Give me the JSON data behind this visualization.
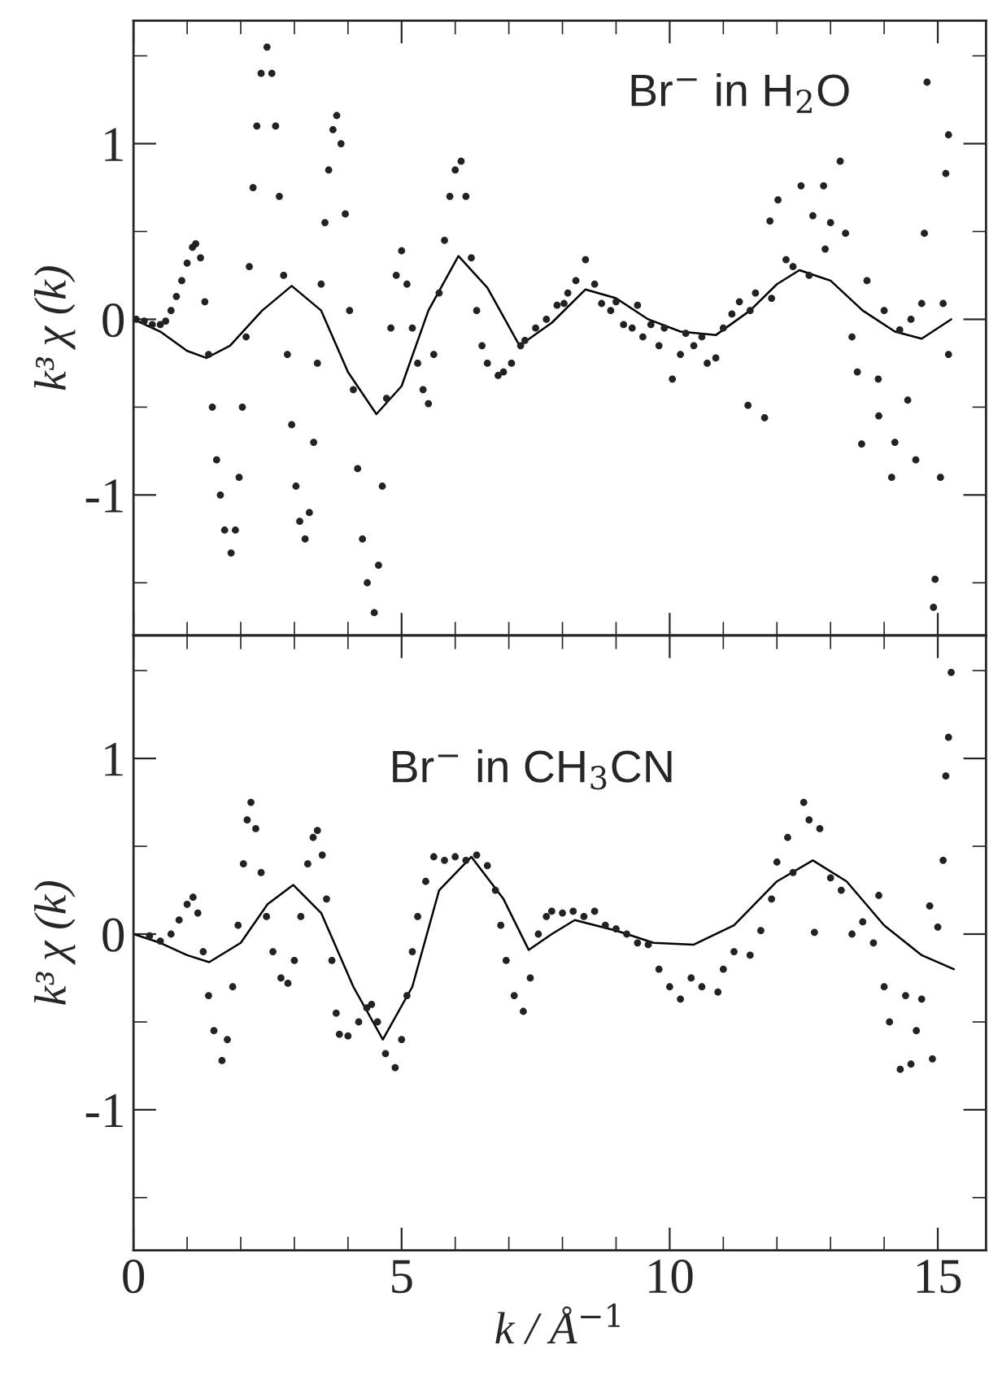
{
  "chart_data": [
    {
      "type": "scatter",
      "xlim": [
        0,
        15.9
      ],
      "ylim": [
        -1.8,
        1.7
      ],
      "tick_labels": "y",
      "ylabel": "k³ χ (k)",
      "grid": false,
      "legend": false,
      "xticks": [
        0,
        {
          "value": 1,
          "label": null
        },
        {
          "value": 2,
          "label": null
        },
        {
          "value": 3,
          "label": null
        },
        {
          "value": 4,
          "label": null
        },
        5,
        {
          "value": 6,
          "label": null
        },
        {
          "value": 7,
          "label": null
        },
        {
          "value": 8,
          "label": null
        },
        {
          "value": 9,
          "label": null
        },
        10,
        {
          "value": 11,
          "label": null
        },
        {
          "value": 12,
          "label": null
        },
        {
          "value": 13,
          "label": null
        },
        {
          "value": 14,
          "label": null
        },
        15
      ],
      "yticks": [
        {
          "value": -1.5,
          "label": null
        },
        -1,
        {
          "value": -0.5,
          "label": null
        },
        0,
        {
          "value": 0.5,
          "label": null
        },
        1,
        {
          "value": 1.5,
          "label": null
        }
      ],
      "annotations": [
        "Br$^{−}$ in H$_{2}$O"
      ],
      "series": [
        {
          "marker": "circle",
          "color": "#222222",
          "x": [
            0.05,
            0.2,
            0.35,
            0.5,
            0.6,
            0.7,
            0.8,
            0.9,
            1.0,
            1.1,
            1.16,
            1.25,
            1.33,
            1.4,
            1.47,
            1.55,
            1.62,
            1.7,
            1.82,
            1.9,
            1.97,
            2.03,
            2.1,
            2.16,
            2.23,
            2.3,
            2.38,
            2.49,
            2.58,
            2.65,
            2.72,
            2.8,
            2.87,
            2.95,
            3.03,
            3.1,
            3.2,
            3.28,
            3.36,
            3.43,
            3.5,
            3.57,
            3.64,
            3.72,
            3.79,
            3.87,
            3.95,
            4.03,
            4.1,
            4.18,
            4.27,
            4.36,
            4.49,
            4.57,
            4.64,
            4.72,
            4.8,
            4.9,
            5.0,
            5.1,
            5.2,
            5.3,
            5.4,
            5.5,
            5.6,
            5.7,
            5.8,
            5.9,
            6.0,
            6.11,
            6.2,
            6.3,
            6.4,
            6.5,
            6.6,
            6.8,
            6.9,
            7.05,
            7.22,
            7.3,
            7.5,
            7.7,
            7.9,
            8.03,
            8.1,
            8.25,
            8.43,
            8.6,
            8.73,
            8.9,
            9.0,
            9.14,
            9.3,
            9.4,
            9.5,
            9.65,
            9.8,
            9.9,
            10.05,
            10.2,
            10.3,
            10.45,
            10.6,
            10.7,
            10.86,
            11.0,
            11.16,
            11.3,
            11.46,
            11.5,
            11.6,
            11.77,
            11.87,
            11.9,
            12.02,
            12.17,
            12.3,
            12.45,
            12.6,
            12.67,
            12.87,
            12.9,
            13.0,
            13.18,
            13.28,
            13.4,
            13.5,
            13.58,
            13.68,
            13.89,
            13.9,
            14.0,
            14.14,
            14.2,
            14.29,
            14.44,
            14.5,
            14.59,
            14.7,
            14.75,
            14.8,
            14.92,
            14.95,
            15.05,
            15.1,
            15.15,
            15.2,
            15.2
          ],
          "values": [
            0.0,
            -0.01,
            -0.03,
            -0.03,
            -0.01,
            0.05,
            0.13,
            0.22,
            0.32,
            0.41,
            0.43,
            0.35,
            0.1,
            -0.2,
            -0.5,
            -0.8,
            -1.0,
            -1.2,
            -1.33,
            -1.2,
            -0.9,
            -0.5,
            -0.1,
            0.3,
            0.75,
            1.1,
            1.4,
            1.55,
            1.4,
            1.1,
            0.7,
            0.25,
            -0.2,
            -0.6,
            -0.95,
            -1.15,
            -1.25,
            -1.1,
            -0.7,
            -0.25,
            0.2,
            0.55,
            0.85,
            1.08,
            1.16,
            1.0,
            0.6,
            0.05,
            -0.4,
            -0.85,
            -1.25,
            -1.5,
            -1.67,
            -1.4,
            -0.95,
            -0.45,
            -0.05,
            0.25,
            0.39,
            0.2,
            -0.05,
            -0.25,
            -0.4,
            -0.48,
            -0.2,
            0.15,
            0.45,
            0.7,
            0.85,
            0.9,
            0.7,
            0.35,
            0.05,
            -0.15,
            -0.25,
            -0.32,
            -0.3,
            -0.25,
            -0.15,
            -0.12,
            -0.05,
            0.0,
            0.08,
            0.09,
            0.15,
            0.22,
            0.34,
            0.2,
            0.09,
            0.05,
            0.1,
            -0.03,
            -0.05,
            0.08,
            -0.1,
            -0.03,
            -0.15,
            -0.05,
            -0.34,
            -0.2,
            -0.08,
            -0.15,
            -0.1,
            -0.25,
            -0.22,
            -0.05,
            0.03,
            0.1,
            -0.49,
            0.05,
            0.15,
            -0.56,
            0.56,
            0.12,
            0.68,
            0.34,
            0.3,
            0.76,
            0.25,
            0.59,
            0.76,
            0.4,
            0.55,
            0.9,
            0.49,
            -0.1,
            -0.3,
            -0.71,
            0.22,
            -0.34,
            -0.55,
            0.05,
            -0.9,
            -0.7,
            -0.06,
            -0.46,
            0.0,
            -0.8,
            0.09,
            0.49,
            1.35,
            -1.64,
            -1.48,
            -0.9,
            0.09,
            0.83,
            1.05,
            -0.2
          ]
        },
        {
          "type": "line",
          "marker": "none",
          "color": "#000000",
          "x": [
            0,
            0.5,
            1.0,
            1.36,
            1.8,
            2.4,
            2.95,
            3.5,
            4.0,
            4.53,
            5.0,
            5.5,
            6.06,
            6.6,
            7.2,
            7.8,
            8.43,
            9.0,
            9.6,
            10.2,
            10.86,
            11.5,
            12.0,
            12.42,
            13.0,
            13.6,
            14.2,
            14.7,
            15.25
          ],
          "values": [
            0,
            -0.07,
            -0.18,
            -0.22,
            -0.15,
            0.05,
            0.19,
            0.05,
            -0.3,
            -0.54,
            -0.38,
            0.05,
            0.36,
            0.18,
            -0.15,
            -0.02,
            0.17,
            0.12,
            0.0,
            -0.07,
            -0.09,
            0.05,
            0.2,
            0.28,
            0.22,
            0.05,
            -0.07,
            -0.11,
            0.0
          ]
        }
      ]
    },
    {
      "type": "scatter",
      "xlim": [
        0,
        15.9
      ],
      "ylim": [
        -1.8,
        1.7
      ],
      "xlabel": "k / Å$^{−1}$",
      "ylabel": "k³ χ (k)",
      "grid": false,
      "legend": false,
      "xticks": [
        0,
        {
          "value": 1,
          "label": null
        },
        {
          "value": 2,
          "label": null
        },
        {
          "value": 3,
          "label": null
        },
        {
          "value": 4,
          "label": null
        },
        5,
        {
          "value": 6,
          "label": null
        },
        {
          "value": 7,
          "label": null
        },
        {
          "value": 8,
          "label": null
        },
        {
          "value": 9,
          "label": null
        },
        10,
        {
          "value": 11,
          "label": null
        },
        {
          "value": 12,
          "label": null
        },
        {
          "value": 13,
          "label": null
        },
        {
          "value": 14,
          "label": null
        },
        15
      ],
      "yticks": [
        {
          "value": -1.5,
          "label": null
        },
        -1,
        {
          "value": -0.5,
          "label": null
        },
        0,
        {
          "value": 0.5,
          "label": null
        },
        1,
        {
          "value": 1.5,
          "label": null
        }
      ],
      "annotations": [
        "Br$^{−}$ in CH$_{3}$CN"
      ],
      "series": [
        {
          "marker": "circle",
          "color": "#222222",
          "x": [
            0.3,
            0.5,
            0.7,
            0.85,
            1.0,
            1.11,
            1.2,
            1.3,
            1.4,
            1.5,
            1.65,
            1.75,
            1.85,
            1.95,
            2.05,
            2.12,
            2.19,
            2.28,
            2.38,
            2.48,
            2.6,
            2.75,
            2.88,
            3.0,
            3.12,
            3.25,
            3.35,
            3.43,
            3.52,
            3.6,
            3.7,
            3.78,
            3.84,
            4.0,
            4.2,
            4.35,
            4.44,
            4.55,
            4.7,
            4.88,
            5.0,
            5.1,
            5.2,
            5.3,
            5.45,
            5.6,
            5.8,
            6.0,
            6.2,
            6.4,
            6.6,
            6.75,
            6.85,
            6.95,
            7.1,
            7.27,
            7.4,
            7.55,
            7.7,
            7.8,
            8.0,
            8.2,
            8.4,
            8.6,
            8.8,
            9.0,
            9.2,
            9.4,
            9.6,
            9.8,
            10.0,
            10.2,
            10.4,
            10.6,
            10.9,
            11.0,
            11.2,
            11.5,
            11.7,
            11.9,
            12.0,
            12.2,
            12.3,
            12.5,
            12.6,
            12.7,
            12.8,
            13.0,
            13.2,
            13.4,
            13.6,
            13.8,
            13.9,
            14.0,
            14.1,
            14.3,
            14.4,
            14.5,
            14.6,
            14.7,
            14.85,
            14.9,
            15.0,
            15.1,
            15.15,
            15.2,
            15.25
          ],
          "values": [
            -0.01,
            -0.04,
            0.0,
            0.08,
            0.17,
            0.21,
            0.12,
            -0.1,
            -0.35,
            -0.55,
            -0.72,
            -0.6,
            -0.3,
            0.05,
            0.4,
            0.65,
            0.75,
            0.6,
            0.35,
            0.1,
            -0.1,
            -0.25,
            -0.28,
            -0.15,
            0.1,
            0.4,
            0.55,
            0.59,
            0.45,
            0.2,
            -0.15,
            -0.45,
            -0.57,
            -0.58,
            -0.5,
            -0.42,
            -0.4,
            -0.5,
            -0.68,
            -0.76,
            -0.6,
            -0.35,
            -0.1,
            0.1,
            0.3,
            0.44,
            0.42,
            0.44,
            0.42,
            0.45,
            0.39,
            0.25,
            0.05,
            -0.15,
            -0.35,
            -0.44,
            -0.25,
            0.0,
            0.1,
            0.13,
            0.12,
            0.13,
            0.1,
            0.13,
            0.05,
            0.03,
            0.0,
            -0.05,
            -0.06,
            -0.2,
            -0.3,
            -0.37,
            -0.25,
            -0.3,
            -0.33,
            -0.2,
            -0.1,
            -0.12,
            0.02,
            0.2,
            0.41,
            0.55,
            0.35,
            0.75,
            0.65,
            0.01,
            0.6,
            0.32,
            0.25,
            0.0,
            0.07,
            -0.05,
            0.22,
            -0.3,
            -0.5,
            -0.77,
            -0.35,
            -0.74,
            -0.55,
            -0.37,
            0.16,
            -0.71,
            0.04,
            0.42,
            0.9,
            1.12,
            1.49
          ]
        },
        {
          "type": "line",
          "marker": "none",
          "color": "#000000",
          "x": [
            0,
            0.5,
            1.0,
            1.41,
            2.0,
            2.5,
            2.98,
            3.5,
            4.1,
            4.65,
            5.2,
            5.7,
            6.3,
            6.9,
            7.37,
            7.8,
            8.23,
            9.0,
            9.7,
            10.45,
            11.2,
            12.0,
            12.67,
            13.3,
            14.0,
            14.7,
            15.3
          ],
          "values": [
            0,
            -0.05,
            -0.12,
            -0.16,
            -0.05,
            0.17,
            0.28,
            0.12,
            -0.3,
            -0.6,
            -0.3,
            0.25,
            0.44,
            0.2,
            -0.09,
            0.0,
            0.08,
            0.02,
            -0.05,
            -0.06,
            0.05,
            0.3,
            0.42,
            0.3,
            0.05,
            -0.12,
            -0.2
          ]
        }
      ]
    }
  ]
}
